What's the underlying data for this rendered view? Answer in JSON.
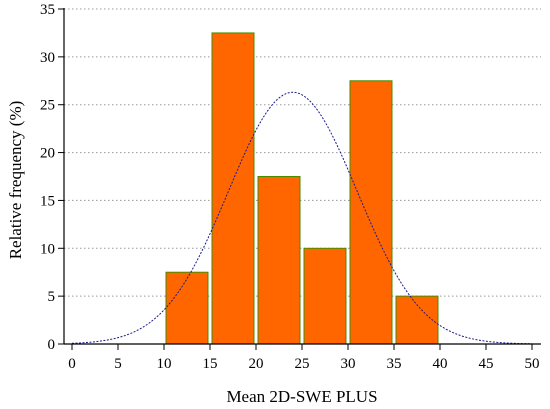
{
  "chart_data": {
    "type": "bar",
    "xlabel": "Mean 2D-SWE PLUS",
    "ylabel": "Relative frequency (%)",
    "xlim": [
      0,
      50
    ],
    "ylim": [
      0,
      35
    ],
    "xticks": [
      0,
      5,
      10,
      15,
      20,
      25,
      30,
      35,
      40,
      45,
      50
    ],
    "yticks": [
      0,
      5,
      10,
      15,
      20,
      25,
      30,
      35
    ],
    "grid": "horizontal-dotted",
    "bins": [
      {
        "x0": 10,
        "x1": 15,
        "value": 7.5
      },
      {
        "x0": 15,
        "x1": 20,
        "value": 32.5
      },
      {
        "x0": 20,
        "x1": 25,
        "value": 17.5
      },
      {
        "x0": 25,
        "x1": 30,
        "value": 10
      },
      {
        "x0": 30,
        "x1": 35,
        "value": 27.5
      },
      {
        "x0": 35,
        "x1": 40,
        "value": 5
      }
    ],
    "normal_curve": {
      "mean": 24,
      "peak": 26.3,
      "sd": 7
    },
    "colors": {
      "bar_fill": "#ff6600",
      "bar_edge": "#4a8a00",
      "curve": "#1a1a8c",
      "grid": "#999999",
      "axis": "#000000"
    }
  }
}
